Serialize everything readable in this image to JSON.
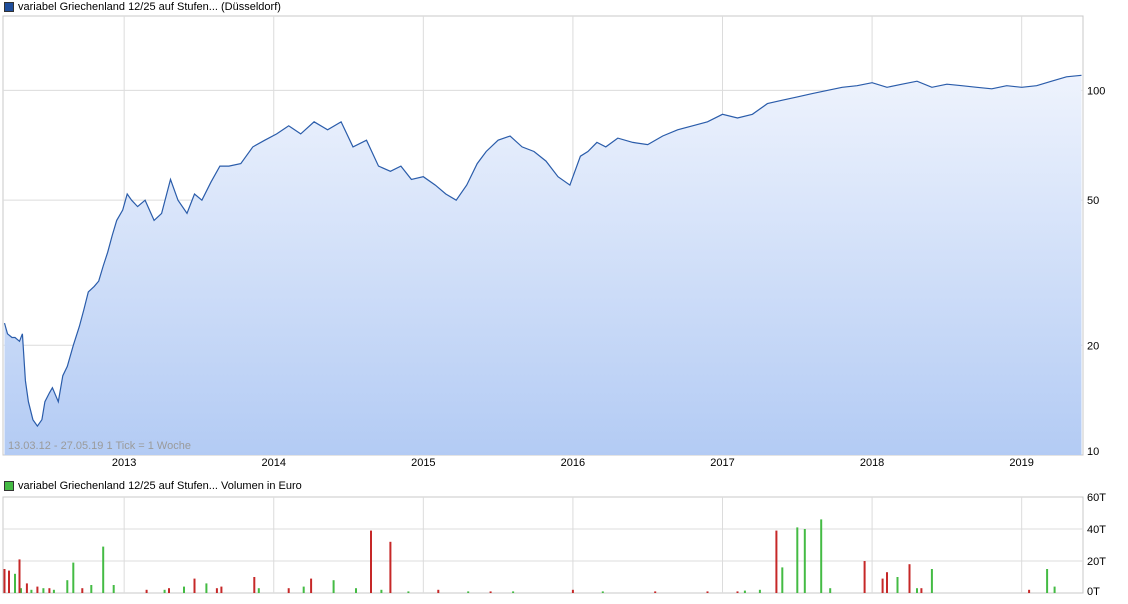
{
  "price_chart": {
    "legend_label": "variabel Griechenland 12/25 auf Stufen... (Düsseldorf)",
    "range_label": "13.03.12 - 27.05.19   1 Tick = 1 Woche",
    "colors": {
      "line": "#2a5caa",
      "fill_top": "#eef3fd",
      "fill_bottom": "#b3cbf4",
      "swatch": "#1f4e9c"
    }
  },
  "volume_chart": {
    "legend_label": "variabel Griechenland 12/25 auf Stufen... Volumen in Euro",
    "colors": {
      "up": "#44bb44",
      "down": "#c62828",
      "swatch": "#44bb44"
    }
  },
  "chart_data": [
    {
      "type": "line",
      "title": "variabel Griechenland 12/25 auf Stufen... (Düsseldorf)",
      "y_scale": "log",
      "ylim": [
        10,
        160
      ],
      "yticks": [
        {
          "label": "100",
          "value": 100
        },
        {
          "label": "50",
          "value": 50
        },
        {
          "label": "20",
          "value": 20
        },
        {
          "label": "10",
          "value": 10
        }
      ],
      "xlim": [
        2012.19,
        2019.41
      ],
      "xticks": [
        {
          "label": "2013",
          "value": 2013
        },
        {
          "label": "2014",
          "value": 2014
        },
        {
          "label": "2015",
          "value": 2015
        },
        {
          "label": "2016",
          "value": 2016
        },
        {
          "label": "2017",
          "value": 2017
        },
        {
          "label": "2018",
          "value": 2018
        },
        {
          "label": "2019",
          "value": 2019
        }
      ],
      "grid": true,
      "x": [
        2012.2,
        2012.22,
        2012.25,
        2012.27,
        2012.3,
        2012.32,
        2012.34,
        2012.36,
        2012.39,
        2012.42,
        2012.45,
        2012.47,
        2012.5,
        2012.52,
        2012.56,
        2012.59,
        2012.62,
        2012.66,
        2012.7,
        2012.73,
        2012.76,
        2012.8,
        2012.83,
        2012.86,
        2012.89,
        2012.92,
        2012.95,
        2012.99,
        2013.02,
        2013.05,
        2013.09,
        2013.14,
        2013.2,
        2013.25,
        2013.31,
        2013.36,
        2013.42,
        2013.47,
        2013.52,
        2013.58,
        2013.64,
        2013.7,
        2013.78,
        2013.86,
        2013.94,
        2014.02,
        2014.1,
        2014.18,
        2014.27,
        2014.36,
        2014.45,
        2014.53,
        2014.62,
        2014.7,
        2014.78,
        2014.85,
        2014.92,
        2015.0,
        2015.08,
        2015.15,
        2015.22,
        2015.29,
        2015.36,
        2015.42,
        2015.5,
        2015.58,
        2015.66,
        2015.74,
        2015.82,
        2015.9,
        2015.98,
        2016.05,
        2016.1,
        2016.16,
        2016.22,
        2016.3,
        2016.4,
        2016.5,
        2016.6,
        2016.7,
        2016.8,
        2016.9,
        2017.0,
        2017.1,
        2017.2,
        2017.3,
        2017.4,
        2017.5,
        2017.6,
        2017.7,
        2017.8,
        2017.9,
        2018.0,
        2018.1,
        2018.2,
        2018.3,
        2018.4,
        2018.5,
        2018.6,
        2018.7,
        2018.8,
        2018.9,
        2019.0,
        2019.1,
        2019.2,
        2019.3,
        2019.4
      ],
      "y": [
        23,
        21.5,
        21,
        21,
        20.5,
        21.5,
        16,
        14,
        12.5,
        12.0,
        12.5,
        14,
        14.8,
        15.3,
        14.0,
        16.5,
        17.5,
        20,
        22.5,
        25,
        28,
        29,
        30,
        33,
        36,
        40,
        44,
        47,
        52,
        50,
        48,
        50,
        44,
        46,
        57,
        50,
        46,
        52,
        50,
        56,
        62,
        62,
        63,
        70,
        73,
        76,
        80,
        76,
        82,
        78,
        82,
        70,
        73,
        62,
        60,
        62,
        57,
        58,
        55,
        52,
        50,
        55,
        63,
        68,
        73,
        75,
        70,
        68,
        64,
        58,
        55,
        66,
        68,
        72,
        70,
        74,
        72,
        71,
        75,
        78,
        80,
        82,
        86,
        84,
        86,
        92,
        94,
        96,
        98,
        100,
        102,
        103,
        105,
        102,
        104,
        106,
        102,
        104,
        103,
        102,
        101,
        103,
        102,
        103,
        106,
        109,
        110
      ]
    },
    {
      "type": "bar",
      "title": "Volumen in Euro",
      "ylabel": "Volumen in Euro",
      "ylim": [
        0,
        60000
      ],
      "yticks": [
        {
          "label": "60T",
          "value": 60000
        },
        {
          "label": "40T",
          "value": 40000
        },
        {
          "label": "20T",
          "value": 20000
        },
        {
          "label": "0T",
          "value": 0
        }
      ],
      "xlim": [
        2012.19,
        2019.41
      ],
      "grid": true,
      "series": [
        {
          "name": "up",
          "x": [
            2012.27,
            2012.31,
            2012.38,
            2012.46,
            2012.53,
            2012.62,
            2012.66,
            2012.78,
            2012.86,
            2012.93,
            2013.27,
            2013.4,
            2013.55,
            2013.9,
            2014.2,
            2014.4,
            2014.55,
            2014.72,
            2014.9,
            2015.3,
            2015.6,
            2016.2,
            2017.15,
            2017.25,
            2017.4,
            2017.5,
            2017.55,
            2017.66,
            2017.72,
            2018.17,
            2018.3,
            2018.4,
            2019.17,
            2019.22
          ],
          "values": [
            12000,
            3000,
            2000,
            3000,
            2000,
            8000,
            19000,
            5000,
            29000,
            5000,
            2000,
            4000,
            6000,
            3000,
            4000,
            8000,
            3000,
            2000,
            1000,
            1000,
            1000,
            1000,
            1500,
            2000,
            16000,
            41000,
            40000,
            46000,
            3000,
            10000,
            3000,
            15000,
            15000,
            4000
          ]
        },
        {
          "name": "down",
          "x": [
            2012.2,
            2012.23,
            2012.3,
            2012.35,
            2012.42,
            2012.5,
            2012.72,
            2013.15,
            2013.3,
            2013.47,
            2013.62,
            2013.65,
            2013.87,
            2014.1,
            2014.25,
            2014.65,
            2014.78,
            2015.1,
            2015.45,
            2016.0,
            2016.55,
            2016.9,
            2017.1,
            2017.36,
            2017.95,
            2018.07,
            2018.1,
            2018.25,
            2018.33,
            2019.05
          ],
          "values": [
            15000,
            14000,
            21000,
            6000,
            4000,
            3000,
            3000,
            2000,
            3000,
            9000,
            3000,
            4000,
            10000,
            3000,
            9000,
            39000,
            32000,
            2000,
            1000,
            2000,
            1000,
            1000,
            1000,
            39000,
            20000,
            9000,
            13000,
            18000,
            3000,
            2000
          ]
        }
      ]
    }
  ]
}
